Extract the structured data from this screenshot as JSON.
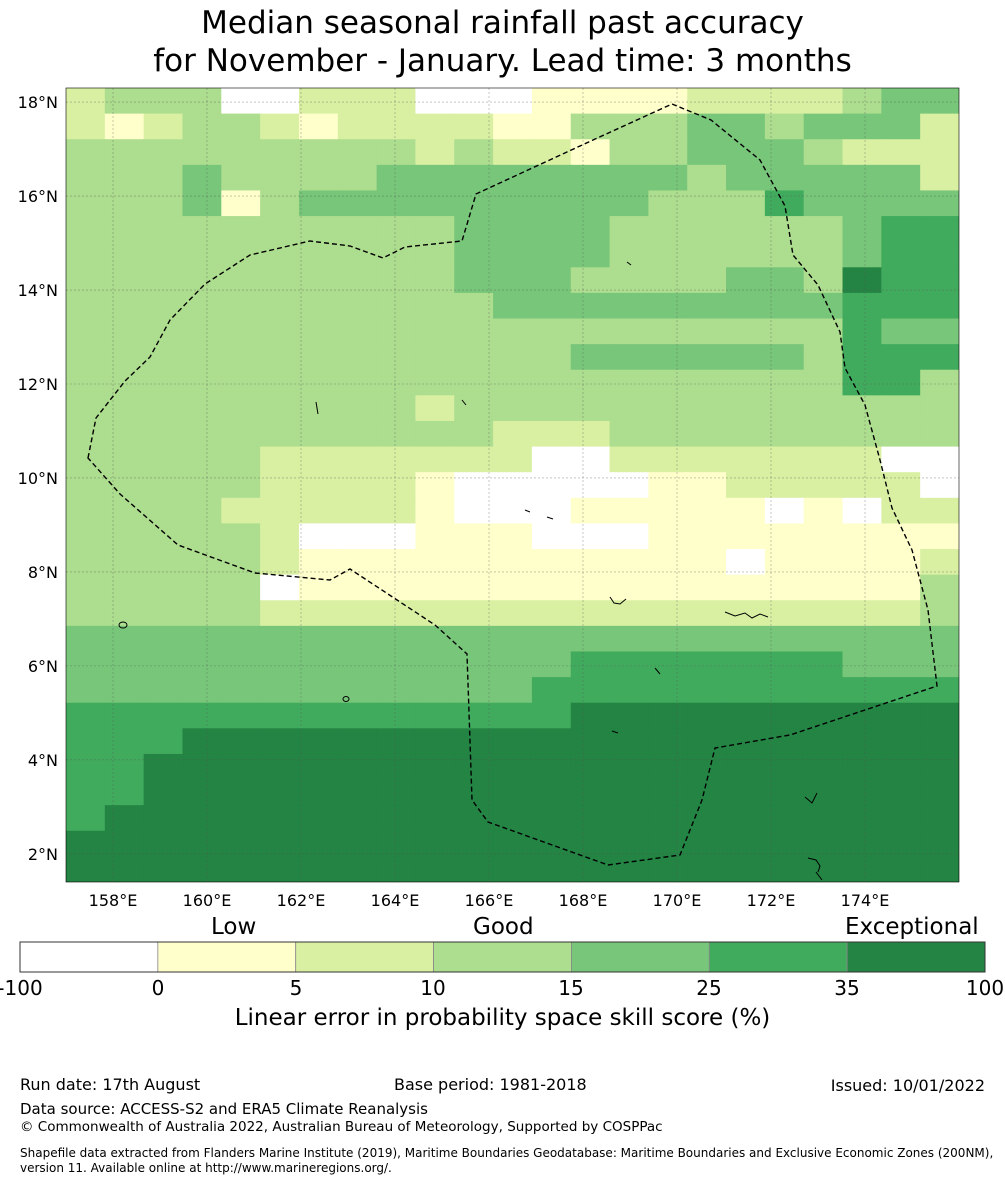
{
  "title_line1": "Median seasonal rainfall past accuracy",
  "title_line2": "for November - January. Lead time: 3 months",
  "lat_labels": [
    "18°N",
    "16°N",
    "14°N",
    "12°N",
    "10°N",
    "8°N",
    "6°N",
    "4°N",
    "2°N"
  ],
  "lon_labels": [
    "158°E",
    "160°E",
    "162°E",
    "164°E",
    "166°E",
    "168°E",
    "170°E",
    "172°E",
    "174°E"
  ],
  "colorbar": {
    "category_low": "Low",
    "category_good": "Good",
    "category_exceptional": "Exceptional",
    "ticks": [
      "-100",
      "0",
      "5",
      "10",
      "15",
      "25",
      "35",
      "100"
    ],
    "title": "Linear error in probability space skill score (%)",
    "colors": [
      "#ffffff",
      "#ffffcc",
      "#d9f0a3",
      "#addd8e",
      "#78c679",
      "#41ab5d",
      "#238443"
    ]
  },
  "footer": {
    "run_date": "Run date: 17th August",
    "base_period": "Base period: 1981-2018",
    "issued": "Issued: 10/01/2022",
    "data_source": "Data source: ACCESS-S2 and ERA5 Climate Reanalysis",
    "copyright": "© Commonwealth of Australia 2022, Australian Bureau of Meteorology, Supported by COSPPac",
    "shapefile": "Shapefile data extracted from Flanders Marine Institute (2019), Maritime Boundaries Geodatabase: Maritime Boundaries and Exclusive Economic Zones (200NM), version 11. Available online at http://www.marineregions.org/."
  },
  "map": {
    "lon_range": [
      157,
      176
    ],
    "lat_range": [
      1.4,
      18.3
    ],
    "grid_rows": [
      "23330022200011112222344",
      "21233212222113334434442",
      "33333333323221334443222",
      "33343333444444443444442",
      "33341344444444433354444",
      "33333333334444333333455",
      "33333333334444333333455",
      "33333333334443333443655",
      "33333333333444444444555",
      "33333333333333333333544",
      "33333333333334444443555",
      "33333333333333333333553",
      "33333333323333333333333",
      "33333333333222333333333",
      "33333222222200222222200",
      "33333222210000011222220",
      "33332222210001111101022",
      "33333200011100011111111",
      "33333211111111111011112",
      "33333011111111111111113",
      "33333222222222222222223",
      "44444444444444444444444",
      "44444444444445555555444",
      "44444444444455555555555",
      "55555555555556666666666",
      "55566666666666666666666",
      "55666666666666666666666",
      "55666666666666666666666",
      "56666666666666666666666",
      "66666666666666666666666",
      "66666666666666666666666"
    ]
  }
}
